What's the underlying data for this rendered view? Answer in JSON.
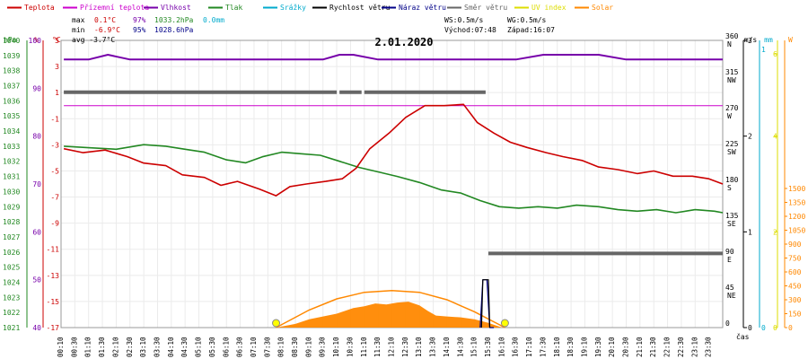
{
  "chart_data": {
    "type": "line",
    "title": "2.01.2020",
    "xlabel": "čas",
    "legend": [
      {
        "label": "Teplota",
        "color": "#cc0000"
      },
      {
        "label": "Přízemní teplota",
        "color": "#cc00cc"
      },
      {
        "label": "Vlhkost",
        "color": "#7700aa"
      },
      {
        "label": "Tlak",
        "color": "#228822"
      },
      {
        "label": "Srážky",
        "color": "#00aacc"
      },
      {
        "label": "Rychlost větru",
        "color": "#000000"
      },
      {
        "label": "Náraz větru",
        "color": "#000088"
      },
      {
        "label": "Směr větru",
        "color": "#666666"
      },
      {
        "label": "UV index",
        "color": "#dddd00"
      },
      {
        "label": "Solar",
        "color": "#ff8800"
      }
    ],
    "stats": {
      "max": {
        "label": "max",
        "temp": "0.1°C",
        "hum": "97%",
        "press": "1033.2hPa",
        "rain": "0.0mm"
      },
      "min": {
        "label": "min",
        "temp": "-6.9°C",
        "hum": "95%",
        "press": "1028.6hPa"
      },
      "avg": {
        "label": "avg",
        "temp": "-3.7°C"
      },
      "ws": "WS:0.5m/s",
      "wg": "WG:0.5m/s",
      "sunrise": "Východ:07:48",
      "sunset": "Západ:16:07"
    },
    "axes": {
      "pressure": {
        "unit": "hPa",
        "range": [
          1021,
          1040
        ],
        "ticks": [
          "1040",
          "1039",
          "1038",
          "1037",
          "1036",
          "1035",
          "1034",
          "1033",
          "1032",
          "1031",
          "1030",
          "1029",
          "1028",
          "1027",
          "1026",
          "1025",
          "1024",
          "1023",
          "1022",
          "1021"
        ]
      },
      "humidity": {
        "unit": "%",
        "range": [
          40,
          100
        ],
        "ticks": [
          "100",
          "90",
          "80",
          "70",
          "60",
          "50",
          "40"
        ]
      },
      "temperature": {
        "unit": "°C",
        "range": [
          -17,
          5
        ],
        "ticks": [
          "5",
          "3",
          "1",
          "-1",
          "-3",
          "-5",
          "-7",
          "-9",
          "-11",
          "-13",
          "-15",
          "-17"
        ]
      },
      "wind_dir": {
        "ticks": [
          {
            "deg": "360",
            "dir": "N"
          },
          {
            "deg": "315",
            "dir": "NW"
          },
          {
            "deg": "270",
            "dir": "W"
          },
          {
            "deg": "225",
            "dir": "SW"
          },
          {
            "deg": "180",
            "dir": "S"
          },
          {
            "deg": "135",
            "dir": "SE"
          },
          {
            "deg": "90",
            "dir": "E"
          },
          {
            "deg": "45",
            "dir": "NE"
          },
          {
            "deg": "0",
            "dir": ""
          }
        ]
      },
      "wind_speed": {
        "unit": "m/s",
        "ticks": [
          "3",
          "2",
          "1",
          "0"
        ]
      },
      "rain": {
        "unit": "mm",
        "ticks": [
          "1",
          "0"
        ]
      },
      "uv": {
        "unit": "",
        "ticks": [
          "6",
          "4",
          "2",
          "0"
        ]
      },
      "solar": {
        "unit": "W",
        "ticks": [
          "1500",
          "1350",
          "1200",
          "1050",
          "900",
          "750",
          "600",
          "450",
          "300",
          "150",
          "0"
        ]
      }
    },
    "x_ticks": [
      "00:10",
      "00:30",
      "01:10",
      "01:30",
      "02:10",
      "02:30",
      "03:10",
      "03:30",
      "04:10",
      "04:30",
      "05:10",
      "05:30",
      "06:10",
      "06:30",
      "07:10",
      "07:30",
      "08:10",
      "08:30",
      "09:10",
      "09:30",
      "10:10",
      "10:30",
      "11:10",
      "11:30",
      "12:10",
      "12:30",
      "13:10",
      "13:30",
      "14:10",
      "14:30",
      "15:10",
      "15:30",
      "16:10",
      "16:30",
      "17:10",
      "17:30",
      "18:10",
      "18:30",
      "19:10",
      "19:30",
      "20:10",
      "20:30",
      "21:10",
      "21:30",
      "22:10",
      "22:30",
      "23:10",
      "23:30"
    ],
    "series": [
      {
        "name": "Teplota",
        "axis": "temperature",
        "color": "#cc0000",
        "x": [
          0.1,
          0.8,
          1.6,
          2.4,
          3.0,
          3.8,
          4.4,
          5.2,
          5.8,
          6.4,
          7.2,
          7.8,
          8.3,
          8.9,
          9.6,
          10.2,
          10.7,
          11.2,
          11.9,
          12.5,
          13.2,
          13.9,
          14.6,
          15.1,
          15.7,
          16.3,
          16.9,
          17.6,
          18.2,
          18.9,
          19.5,
          20.2,
          20.9,
          21.5,
          22.2,
          22.9,
          23.5,
          24.0
        ],
        "values": [
          -3.3,
          -3.6,
          -3.4,
          -3.9,
          -4.4,
          -4.6,
          -5.3,
          -5.5,
          -6.1,
          -5.8,
          -6.4,
          -6.9,
          -6.2,
          -6.0,
          -5.8,
          -5.6,
          -4.8,
          -3.3,
          -2.1,
          -0.9,
          0.0,
          0.0,
          0.1,
          -1.3,
          -2.1,
          -2.8,
          -3.2,
          -3.6,
          -3.9,
          -4.2,
          -4.7,
          -4.9,
          -5.2,
          -5.0,
          -5.4,
          -5.4,
          -5.6,
          -6.0
        ]
      },
      {
        "name": "Vlhkost",
        "axis": "humidity",
        "color": "#7700aa",
        "x": [
          0.1,
          1.0,
          1.7,
          2.5,
          3.5,
          4.5,
          5.5,
          6.5,
          7.5,
          8.5,
          9.5,
          10.1,
          10.6,
          11.5,
          12.5,
          13.5,
          14.5,
          15.5,
          16.5,
          17.5,
          18.5,
          19.5,
          20.5,
          21.5,
          22.5,
          23.5,
          24.0
        ],
        "values": [
          96,
          96,
          97,
          96,
          96,
          96,
          96,
          96,
          96,
          96,
          96,
          97,
          97,
          96,
          96,
          96,
          96,
          96,
          96,
          97,
          97,
          97,
          96,
          96,
          96,
          96,
          96
        ]
      },
      {
        "name": "Přízemní teplota",
        "axis": "temperature",
        "color": "#cc00cc",
        "x": [
          0.1,
          24.0
        ],
        "values": [
          0.0,
          0.0
        ]
      },
      {
        "name": "Tlak",
        "axis": "pressure",
        "color": "#228822",
        "x": [
          0.1,
          1.0,
          2.0,
          3.0,
          3.8,
          4.5,
          5.2,
          6.0,
          6.7,
          7.3,
          8.0,
          8.7,
          9.4,
          10.1,
          10.8,
          11.5,
          12.2,
          13.0,
          13.8,
          14.5,
          15.2,
          15.9,
          16.6,
          17.3,
          18.0,
          18.7,
          19.5,
          20.2,
          20.9,
          21.6,
          22.3,
          23.0,
          23.7,
          24.0
        ],
        "values": [
          1033.0,
          1032.9,
          1032.8,
          1033.1,
          1033.0,
          1032.8,
          1032.6,
          1032.1,
          1031.9,
          1032.3,
          1032.6,
          1032.5,
          1032.4,
          1032.0,
          1031.6,
          1031.3,
          1031.0,
          1030.6,
          1030.1,
          1029.9,
          1029.4,
          1029.0,
          1028.9,
          1029.0,
          1028.9,
          1029.1,
          1029.0,
          1028.8,
          1028.7,
          1028.8,
          1028.6,
          1028.8,
          1028.7,
          1028.6
        ]
      },
      {
        "name": "Směr větru",
        "axis": "wind_dir",
        "color": "#666666",
        "segments": [
          {
            "x": [
              0.1,
              10.0
            ],
            "values": [
              295,
              295
            ]
          },
          {
            "x": [
              10.1,
              10.9
            ],
            "values": [
              295,
              295
            ]
          },
          {
            "x": [
              11.0,
              15.4
            ],
            "values": [
              295,
              295
            ]
          },
          {
            "x": [
              15.5,
              24.0
            ],
            "values": [
              93,
              93
            ]
          }
        ]
      },
      {
        "name": "Náraz větru",
        "axis": "wind_speed",
        "color": "#000088",
        "x": [
          15.2,
          15.3,
          15.45,
          15.55,
          15.7
        ],
        "values": [
          0,
          0.5,
          0.5,
          0,
          0
        ]
      },
      {
        "name": "Rychlost větru",
        "axis": "wind_speed",
        "color": "#000000",
        "x": [
          15.25,
          15.3,
          15.5,
          15.55
        ],
        "values": [
          0,
          0.5,
          0.5,
          0
        ]
      },
      {
        "name": "Solar",
        "axis": "solar",
        "color": "#ff8800",
        "area_x": [
          7.8,
          8.5,
          9.0,
          9.5,
          10.0,
          10.3,
          10.6,
          11.0,
          11.4,
          11.8,
          12.2,
          12.6,
          13.0,
          13.3,
          13.6,
          14.0,
          14.5,
          15.0,
          15.5,
          16.0
        ],
        "area_values": [
          0,
          40,
          90,
          120,
          150,
          180,
          210,
          230,
          260,
          250,
          270,
          280,
          240,
          180,
          130,
          120,
          110,
          90,
          50,
          0
        ],
        "curve_x": [
          7.8,
          9.0,
          10.0,
          11.0,
          12.0,
          13.0,
          14.0,
          15.0,
          16.1
        ],
        "curve_values": [
          0,
          190,
          310,
          380,
          400,
          380,
          300,
          170,
          0
        ]
      }
    ],
    "uv_markers": [
      {
        "time": "07:48",
        "x": 7.8,
        "value": 0
      },
      {
        "time": "16:07",
        "x": 16.1,
        "value": 0
      }
    ]
  }
}
